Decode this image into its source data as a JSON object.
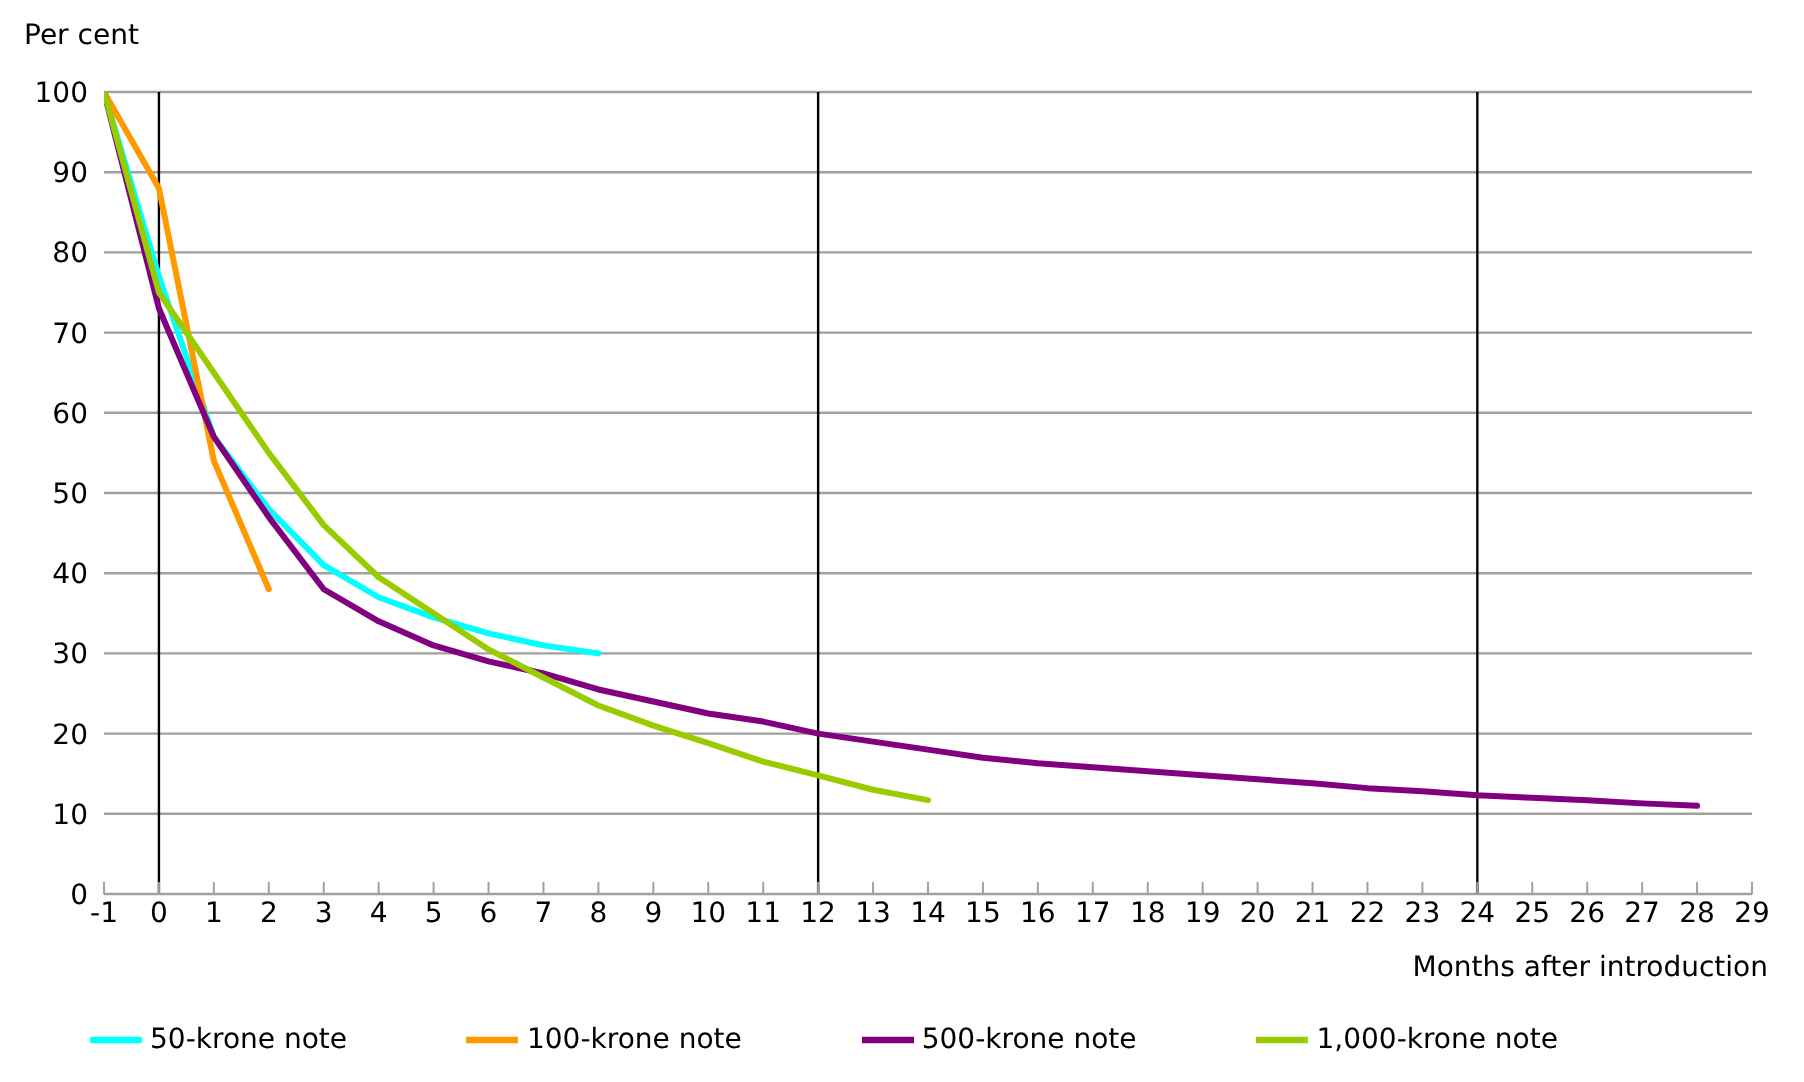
{
  "chart_data": {
    "type": "line",
    "ylabel": "Per cent",
    "xlabel": "Months after introduction",
    "xlim": [
      -1,
      29
    ],
    "xticks": [
      -1,
      0,
      1,
      2,
      3,
      4,
      5,
      6,
      7,
      8,
      9,
      10,
      11,
      12,
      13,
      14,
      15,
      16,
      17,
      18,
      19,
      20,
      21,
      22,
      23,
      24,
      25,
      26,
      27,
      28,
      29
    ],
    "ylim": [
      0,
      100
    ],
    "yticks": [
      0,
      10,
      20,
      30,
      40,
      50,
      60,
      70,
      80,
      90,
      100
    ],
    "grid": "y",
    "legend": "bottom",
    "marker": "none",
    "line_style": "solid",
    "ref_lines": [
      {
        "axis": "x",
        "value": 0,
        "color": "#000000"
      },
      {
        "axis": "x",
        "value": 12,
        "color": "#000000"
      },
      {
        "axis": "x",
        "value": 24,
        "color": "#000000"
      }
    ],
    "series": [
      {
        "name": "50-krone note",
        "color": "#00ffff",
        "x": [
          -1,
          0,
          1,
          2,
          3,
          4,
          5,
          6,
          7,
          8
        ],
        "values": [
          100,
          77,
          57,
          48,
          41,
          37,
          34.5,
          32.5,
          31,
          30
        ]
      },
      {
        "name": "100-krone note",
        "color": "#ff9900",
        "x": [
          -1,
          0,
          1,
          2
        ],
        "values": [
          100,
          88,
          54,
          38
        ]
      },
      {
        "name": "500-krone note",
        "color": "#800080",
        "x": [
          -1,
          0,
          1,
          2,
          3,
          4,
          5,
          6,
          7,
          8,
          9,
          10,
          11,
          12,
          13,
          14,
          15,
          16,
          17,
          18,
          19,
          20,
          21,
          22,
          23,
          24,
          25,
          26,
          27,
          28
        ],
        "values": [
          100,
          73,
          57,
          47,
          38,
          34,
          31,
          29,
          27.5,
          25.5,
          24,
          22.5,
          21.5,
          20,
          19,
          18,
          17,
          16.3,
          15.8,
          15.3,
          14.8,
          14.3,
          13.8,
          13.2,
          12.8,
          12.3,
          12,
          11.7,
          11.3,
          11
        ]
      },
      {
        "name": "1,000-krone note",
        "color": "#99cc00",
        "x": [
          -1,
          0,
          1,
          2,
          3,
          4,
          5,
          6,
          7,
          8,
          9,
          10,
          11,
          12,
          13,
          14
        ],
        "values": [
          100,
          75,
          65,
          55,
          46,
          39.5,
          35,
          30.5,
          27,
          23.5,
          21,
          18.8,
          16.5,
          14.8,
          13,
          11.7
        ]
      }
    ]
  }
}
